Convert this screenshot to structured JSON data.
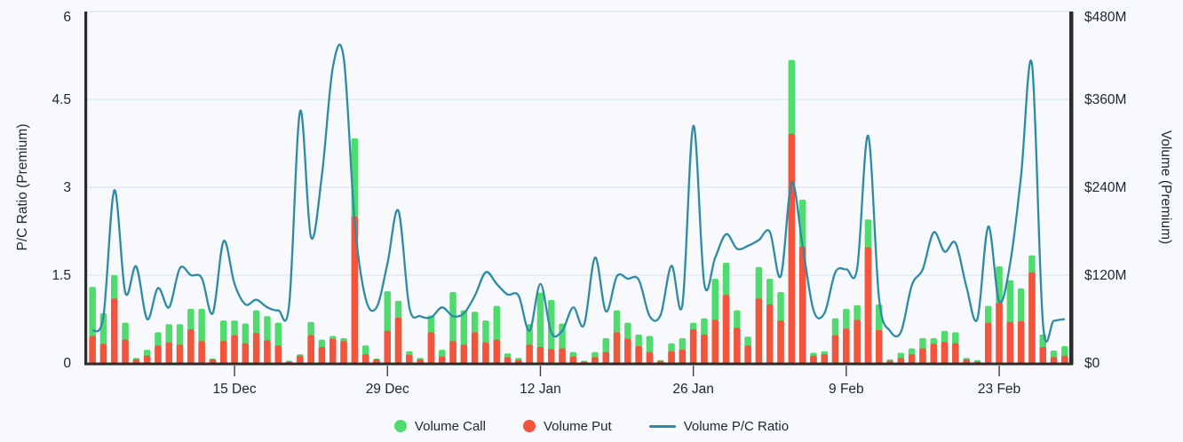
{
  "chart_data": {
    "type": "bar",
    "description": "Daily stacked option volume (call+put premium, right axis) with put/call ratio line (left axis), early Dec through Mar 1",
    "left_axis": {
      "label": "P/C Ratio (Premium)",
      "ticks": [
        0,
        1.5,
        3,
        4.5,
        6
      ],
      "tick_labels": [
        "0",
        "1.5",
        "3",
        "4.5",
        "6"
      ],
      "range": [
        0,
        6
      ]
    },
    "right_axis": {
      "label": "Volume (Premium)",
      "ticks": [
        0,
        120,
        240,
        360,
        480
      ],
      "tick_labels": [
        "$0",
        "$120M",
        "$240M",
        "$360M",
        "$480M"
      ],
      "range_millions": [
        0,
        480
      ]
    },
    "x_axis": {
      "num_days": 90,
      "tick_labels": [
        "15 Dec",
        "29 Dec",
        "12 Jan",
        "26 Jan",
        "9 Feb",
        "23 Feb"
      ],
      "tick_day_indices": [
        13,
        27,
        41,
        55,
        69,
        83
      ]
    },
    "grid": true,
    "legend_position": "bottom",
    "legend": [
      {
        "label": "Volume Call",
        "color": "#4fdb6d",
        "marker": "dot"
      },
      {
        "label": "Volume Put",
        "color": "#f4533c",
        "marker": "dot"
      },
      {
        "label": "Volume P/C Ratio",
        "color": "#2e8ba6",
        "marker": "line"
      }
    ],
    "series": [
      {
        "name": "Volume Put",
        "type": "bar",
        "stack_order": "bottom",
        "axis": "right",
        "units": "USD millions",
        "values": [
          37,
          26,
          88,
          32,
          5,
          10,
          24,
          28,
          25,
          46,
          30,
          5,
          30,
          38,
          27,
          41,
          31,
          24,
          2,
          10,
          38,
          22,
          33,
          30,
          200,
          12,
          5,
          44,
          62,
          11,
          5,
          42,
          9,
          30,
          25,
          42,
          28,
          32,
          8,
          4,
          25,
          22,
          19,
          20,
          9,
          2,
          8,
          15,
          42,
          33,
          23,
          15,
          3,
          16,
          18,
          46,
          39,
          59,
          93,
          48,
          24,
          88,
          80,
          58,
          313,
          159,
          10,
          12,
          38,
          47,
          59,
          158,
          45,
          3,
          7,
          12,
          20,
          26,
          29,
          27,
          5,
          2,
          55,
          82,
          56,
          57,
          124,
          22,
          8,
          10
        ]
      },
      {
        "name": "Volume Call",
        "type": "bar",
        "stack_order": "top",
        "axis": "right",
        "units": "USD millions",
        "values": [
          67,
          42,
          32,
          23,
          2,
          8,
          18,
          25,
          28,
          28,
          44,
          1,
          28,
          20,
          27,
          31,
          33,
          31,
          1,
          2,
          18,
          10,
          4,
          4,
          107,
          12,
          1,
          54,
          23,
          5,
          2,
          23,
          9,
          67,
          47,
          28,
          30,
          46,
          5,
          3,
          28,
          74,
          67,
          34,
          6,
          1,
          7,
          19,
          30,
          22,
          16,
          22,
          1,
          11,
          16,
          9,
          22,
          56,
          44,
          24,
          12,
          43,
          35,
          39,
          101,
          64,
          4,
          4,
          23,
          27,
          20,
          38,
          35,
          2,
          7,
          8,
          14,
          8,
          15,
          15,
          2,
          2,
          23,
          50,
          57,
          45,
          23,
          17,
          9,
          13
        ]
      },
      {
        "name": "Volume P/C Ratio",
        "type": "line",
        "axis": "left",
        "values": [
          0.55,
          0.8,
          2.95,
          1.2,
          1.65,
          0.75,
          1.28,
          0.95,
          1.62,
          1.5,
          1.45,
          0.85,
          2.08,
          1.35,
          1.0,
          1.08,
          0.95,
          0.9,
          1.0,
          4.3,
          2.15,
          3.2,
          5.05,
          5.2,
          2.4,
          1.1,
          0.95,
          1.7,
          2.6,
          0.95,
          0.8,
          0.78,
          0.95,
          0.8,
          0.85,
          1.15,
          1.55,
          1.35,
          1.17,
          1.15,
          0.55,
          1.35,
          0.52,
          0.55,
          0.95,
          0.65,
          1.8,
          0.88,
          1.48,
          1.44,
          1.42,
          0.8,
          0.82,
          1.66,
          1.0,
          4.05,
          1.35,
          1.8,
          2.2,
          1.95,
          2.0,
          2.1,
          2.24,
          1.48,
          3.08,
          2.0,
          0.9,
          0.85,
          1.55,
          1.6,
          1.62,
          3.88,
          1.1,
          0.55,
          0.53,
          1.33,
          1.6,
          2.23,
          1.9,
          2.05,
          1.3,
          0.75,
          2.33,
          1.05,
          1.7,
          3.2,
          5.1,
          0.68,
          0.72,
          0.75
        ]
      }
    ],
    "colors": {
      "call": "#4fdb6d",
      "put": "#f4533c",
      "ratio_line": "#2e8ba6",
      "axis": "#2a2c2e",
      "grid": "#dde9f6",
      "background": "#f7f9fc",
      "text": "#1b2733"
    }
  }
}
